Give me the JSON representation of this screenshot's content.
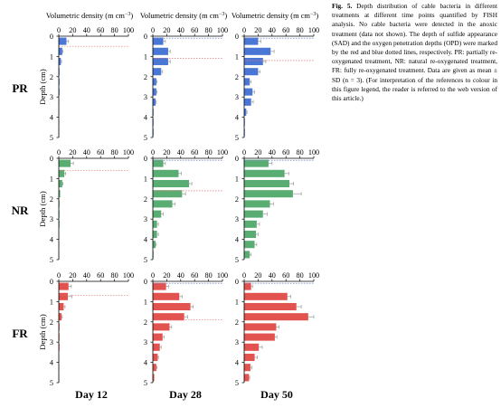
{
  "figure": {
    "row_labels": [
      "PR",
      "NR",
      "FR"
    ],
    "column_labels": [
      "Day 12",
      "Day 28",
      "Day 50"
    ],
    "x_axis_title": "Volumetric density (m cm",
    "x_axis_unit_exponent": "−3",
    "x_axis_title_close": ")",
    "y_axis_title": "Depth (cm)",
    "colors": {
      "PR": "#4a76d6",
      "NR": "#5aad72",
      "FR": "#e2524e",
      "sad_line": "#e07a7a",
      "opd_line": "#6f86d9",
      "error_bar": "#999999"
    }
  },
  "caption": {
    "label": "Fig. 5.",
    "text": " Depth distribution of cable bacteria in different treatments at different time points quantified by FISH analysis. No cable bacteria were detected in the anoxic treatment (data not shown). The depth of sulfide appearance (SAD) and the oxygen penetration depths (OPD) were marked by the red and blue dotted lines, respectively. PR: partially re-oxygenated treatment, NR: natural re-oxygenated treatment, FR: fully re-oxygenated treatment. Data are given as mean ± SD (n = 3). (For interpretation of the references to colour in this figure legend, the reader is referred to the web version of this article.)"
  },
  "chart_data": [
    {
      "type": "bar",
      "orientation": "horizontal",
      "treatment": "PR",
      "day": "Day 12",
      "depth_cm": [
        0,
        0.5,
        1,
        1.5,
        2,
        2.5,
        3,
        3.5,
        4,
        4.5
      ],
      "values": [
        11,
        5,
        3,
        1,
        1,
        1,
        0.5,
        0.5,
        0.5,
        0.5
      ],
      "errors": [
        3,
        1,
        1,
        0,
        0,
        0,
        0,
        0,
        0,
        0
      ],
      "xlim": [
        0,
        100
      ],
      "ylim": [
        0,
        5
      ],
      "xticks": [
        0,
        20,
        40,
        60,
        80,
        100
      ],
      "yticks": [
        0,
        1,
        2,
        3,
        4,
        5
      ],
      "sad_depth": 0.5,
      "opd_depth": null
    },
    {
      "type": "bar",
      "orientation": "horizontal",
      "treatment": "PR",
      "day": "Day 28",
      "depth_cm": [
        0,
        0.5,
        1,
        1.5,
        2,
        2.5,
        3,
        3.5,
        4,
        4.5
      ],
      "values": [
        15,
        22,
        22,
        12,
        5,
        5,
        4,
        1,
        1,
        1
      ],
      "errors": [
        3,
        3,
        3,
        2,
        1,
        1,
        1,
        0,
        0,
        0
      ],
      "xlim": [
        0,
        100
      ],
      "ylim": [
        0,
        5
      ],
      "xticks": [
        0,
        20,
        40,
        60,
        80,
        100
      ],
      "yticks": [
        0,
        1,
        2,
        3,
        4,
        5
      ],
      "sad_depth": 1.1,
      "opd_depth": 0.1
    },
    {
      "type": "bar",
      "orientation": "horizontal",
      "treatment": "PR",
      "day": "Day 50",
      "depth_cm": [
        0,
        0.5,
        1,
        1.5,
        2,
        2.5,
        3,
        3.5,
        4,
        4.5
      ],
      "values": [
        20,
        38,
        27,
        20,
        8,
        12,
        10,
        3,
        1,
        1
      ],
      "errors": [
        4,
        5,
        4,
        3,
        2,
        3,
        3,
        1,
        0,
        0
      ],
      "xlim": [
        0,
        100
      ],
      "ylim": [
        0,
        5
      ],
      "xticks": [
        0,
        20,
        40,
        60,
        80,
        100
      ],
      "yticks": [
        0,
        1,
        2,
        3,
        4,
        5
      ],
      "sad_depth": 1.2,
      "opd_depth": 0.1
    },
    {
      "type": "bar",
      "orientation": "horizontal",
      "treatment": "NR",
      "day": "Day 12",
      "depth_cm": [
        0,
        0.5,
        1,
        1.5,
        2,
        2.5,
        3,
        3.5,
        4,
        4.5
      ],
      "values": [
        17,
        8,
        5,
        2,
        1,
        1,
        1,
        0.5,
        0.5,
        0.5
      ],
      "errors": [
        4,
        2,
        1,
        0,
        0,
        0,
        0,
        0,
        0,
        0
      ],
      "xlim": [
        0,
        100
      ],
      "ylim": [
        0,
        5
      ],
      "xticks": [
        0,
        20,
        40,
        60,
        80,
        100
      ],
      "yticks": [
        0,
        1,
        2,
        3,
        4,
        5
      ],
      "sad_depth": 0.6,
      "opd_depth": null
    },
    {
      "type": "bar",
      "orientation": "horizontal",
      "treatment": "NR",
      "day": "Day 28",
      "depth_cm": [
        0,
        0.5,
        1,
        1.5,
        2,
        2.5,
        3,
        3.5,
        4,
        4.5
      ],
      "values": [
        15,
        37,
        52,
        42,
        28,
        12,
        6,
        6,
        4,
        1
      ],
      "errors": [
        3,
        4,
        4,
        5,
        4,
        3,
        2,
        2,
        1,
        0
      ],
      "xlim": [
        0,
        100
      ],
      "ylim": [
        0,
        5
      ],
      "xticks": [
        0,
        20,
        40,
        60,
        80,
        100
      ],
      "yticks": [
        0,
        1,
        2,
        3,
        4,
        5
      ],
      "sad_depth": 1.6,
      "opd_depth": 0.1
    },
    {
      "type": "bar",
      "orientation": "horizontal",
      "treatment": "NR",
      "day": "Day 50",
      "depth_cm": [
        0,
        0.5,
        1,
        1.5,
        2,
        2.5,
        3,
        3.5,
        4,
        4.5
      ],
      "values": [
        35,
        58,
        65,
        70,
        37,
        27,
        18,
        17,
        15,
        8
      ],
      "errors": [
        5,
        6,
        6,
        12,
        5,
        6,
        4,
        3,
        3,
        2
      ],
      "xlim": [
        0,
        100
      ],
      "ylim": [
        0,
        5
      ],
      "xticks": [
        0,
        20,
        40,
        60,
        80,
        100
      ],
      "yticks": [
        0,
        1,
        2,
        3,
        4,
        5
      ],
      "sad_depth": null,
      "opd_depth": 0.1
    },
    {
      "type": "bar",
      "orientation": "horizontal",
      "treatment": "FR",
      "day": "Day 12",
      "depth_cm": [
        0,
        0.5,
        1,
        1.5,
        2,
        2.5,
        3,
        3.5,
        4,
        4.5
      ],
      "values": [
        14,
        13,
        7,
        4,
        1,
        1,
        1,
        0.5,
        0.5,
        0.5
      ],
      "errors": [
        4,
        6,
        2,
        1,
        0,
        0,
        0,
        0,
        0,
        0
      ],
      "xlim": [
        0,
        100
      ],
      "ylim": [
        0,
        5
      ],
      "xticks": [
        0,
        20,
        40,
        60,
        80,
        100
      ],
      "yticks": [
        0,
        1,
        2,
        3,
        4,
        5
      ],
      "sad_depth": 0.7,
      "opd_depth": null
    },
    {
      "type": "bar",
      "orientation": "horizontal",
      "treatment": "FR",
      "day": "Day 28",
      "depth_cm": [
        0,
        0.5,
        1,
        1.5,
        2,
        2.5,
        3,
        3.5,
        4,
        4.5
      ],
      "values": [
        19,
        38,
        54,
        45,
        24,
        14,
        10,
        7,
        5,
        2
      ],
      "errors": [
        4,
        4,
        4,
        5,
        3,
        2,
        2,
        1,
        1,
        0
      ],
      "xlim": [
        0,
        100
      ],
      "ylim": [
        0,
        5
      ],
      "xticks": [
        0,
        20,
        40,
        60,
        80,
        100
      ],
      "yticks": [
        0,
        1,
        2,
        3,
        4,
        5
      ],
      "sad_depth": 1.9,
      "opd_depth": 0.1
    },
    {
      "type": "bar",
      "orientation": "horizontal",
      "treatment": "FR",
      "day": "Day 50",
      "depth_cm": [
        0,
        0.5,
        1,
        1.5,
        2,
        2.5,
        3,
        3.5,
        4,
        4.5
      ],
      "values": [
        10,
        62,
        75,
        92,
        46,
        44,
        21,
        15,
        9,
        7
      ],
      "errors": [
        2,
        5,
        7,
        8,
        4,
        3,
        5,
        4,
        2,
        1
      ],
      "xlim": [
        0,
        100
      ],
      "ylim": [
        0,
        5
      ],
      "xticks": [
        0,
        20,
        40,
        60,
        80,
        100
      ],
      "yticks": [
        0,
        1,
        2,
        3,
        4,
        5
      ],
      "sad_depth": null,
      "opd_depth": 0.1
    }
  ]
}
